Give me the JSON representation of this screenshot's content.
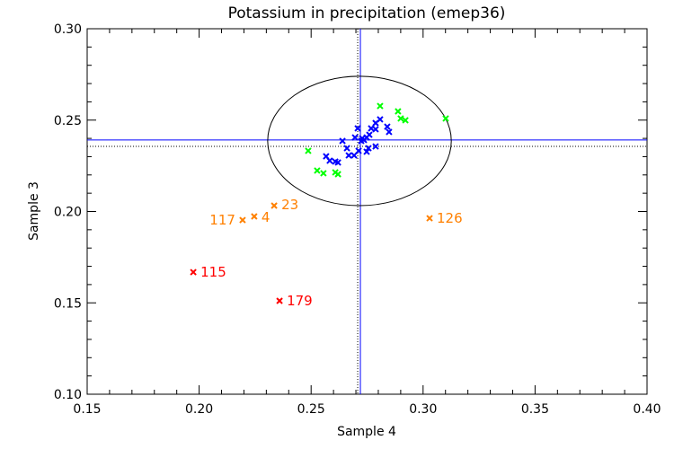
{
  "chart_data": {
    "type": "scatter",
    "title": "Potassium in precipitation (emep36)",
    "xlabel": "Sample 4",
    "ylabel": "Sample 3",
    "xlim": [
      0.15,
      0.4
    ],
    "ylim": [
      0.1,
      0.3
    ],
    "xticks": [
      "0.15",
      "0.20",
      "0.25",
      "0.30",
      "0.35",
      "0.40"
    ],
    "yticks": [
      "0.10",
      "0.15",
      "0.20",
      "0.25",
      "0.30"
    ],
    "grid": false,
    "reference_lines": {
      "vertical_solid": 0.272,
      "vertical_dotted": 0.2708,
      "horizontal_solid": 0.2391,
      "horizontal_dotted": 0.2356,
      "solid_color": "#0000ff",
      "dotted_color": "#000000"
    },
    "ellipse": {
      "center": [
        0.2716,
        0.2386
      ],
      "semi_axes": [
        0.041,
        0.0354
      ],
      "color": "#000000"
    },
    "series": [
      {
        "color": "#0000ff",
        "points": [
          [
            0.2808,
            0.2504
          ],
          [
            0.2788,
            0.2484
          ],
          [
            0.284,
            0.2464
          ],
          [
            0.2848,
            0.2435
          ],
          [
            0.2708,
            0.2455
          ],
          [
            0.2768,
            0.2455
          ],
          [
            0.2788,
            0.245
          ],
          [
            0.276,
            0.242
          ],
          [
            0.2748,
            0.2405
          ],
          [
            0.2696,
            0.2405
          ],
          [
            0.2728,
            0.24
          ],
          [
            0.2736,
            0.2391
          ],
          [
            0.2724,
            0.2386
          ],
          [
            0.264,
            0.2386
          ],
          [
            0.2788,
            0.2356
          ],
          [
            0.2756,
            0.2346
          ],
          [
            0.266,
            0.2346
          ],
          [
            0.2748,
            0.2327
          ],
          [
            0.2712,
            0.2332
          ],
          [
            0.2668,
            0.2307
          ],
          [
            0.2692,
            0.2307
          ],
          [
            0.2567,
            0.2302
          ],
          [
            0.2583,
            0.2278
          ],
          [
            0.262,
            0.2268
          ],
          [
            0.2608,
            0.2273
          ]
        ]
      },
      {
        "color": "#00ff00",
        "points": [
          [
            0.2808,
            0.2577
          ],
          [
            0.2888,
            0.2548
          ],
          [
            0.29,
            0.2509
          ],
          [
            0.2921,
            0.2499
          ],
          [
            0.3101,
            0.2509
          ],
          [
            0.2487,
            0.2332
          ],
          [
            0.2527,
            0.2224
          ],
          [
            0.2555,
            0.2209
          ],
          [
            0.2608,
            0.2214
          ],
          [
            0.262,
            0.2204
          ]
        ]
      },
      {
        "color": "#ff8000",
        "points": [
          {
            "x": 0.2194,
            "y": 0.1953,
            "label": "117"
          },
          {
            "x": 0.2246,
            "y": 0.1973,
            "label": "4"
          },
          {
            "x": 0.2335,
            "y": 0.2032,
            "label": "23"
          },
          {
            "x": 0.3029,
            "y": 0.1963,
            "label": "126"
          }
        ]
      },
      {
        "color": "#ff0000",
        "points": [
          {
            "x": 0.1974,
            "y": 0.1668,
            "label": "115"
          },
          {
            "x": 0.2359,
            "y": 0.1511,
            "label": "179"
          }
        ]
      }
    ]
  }
}
